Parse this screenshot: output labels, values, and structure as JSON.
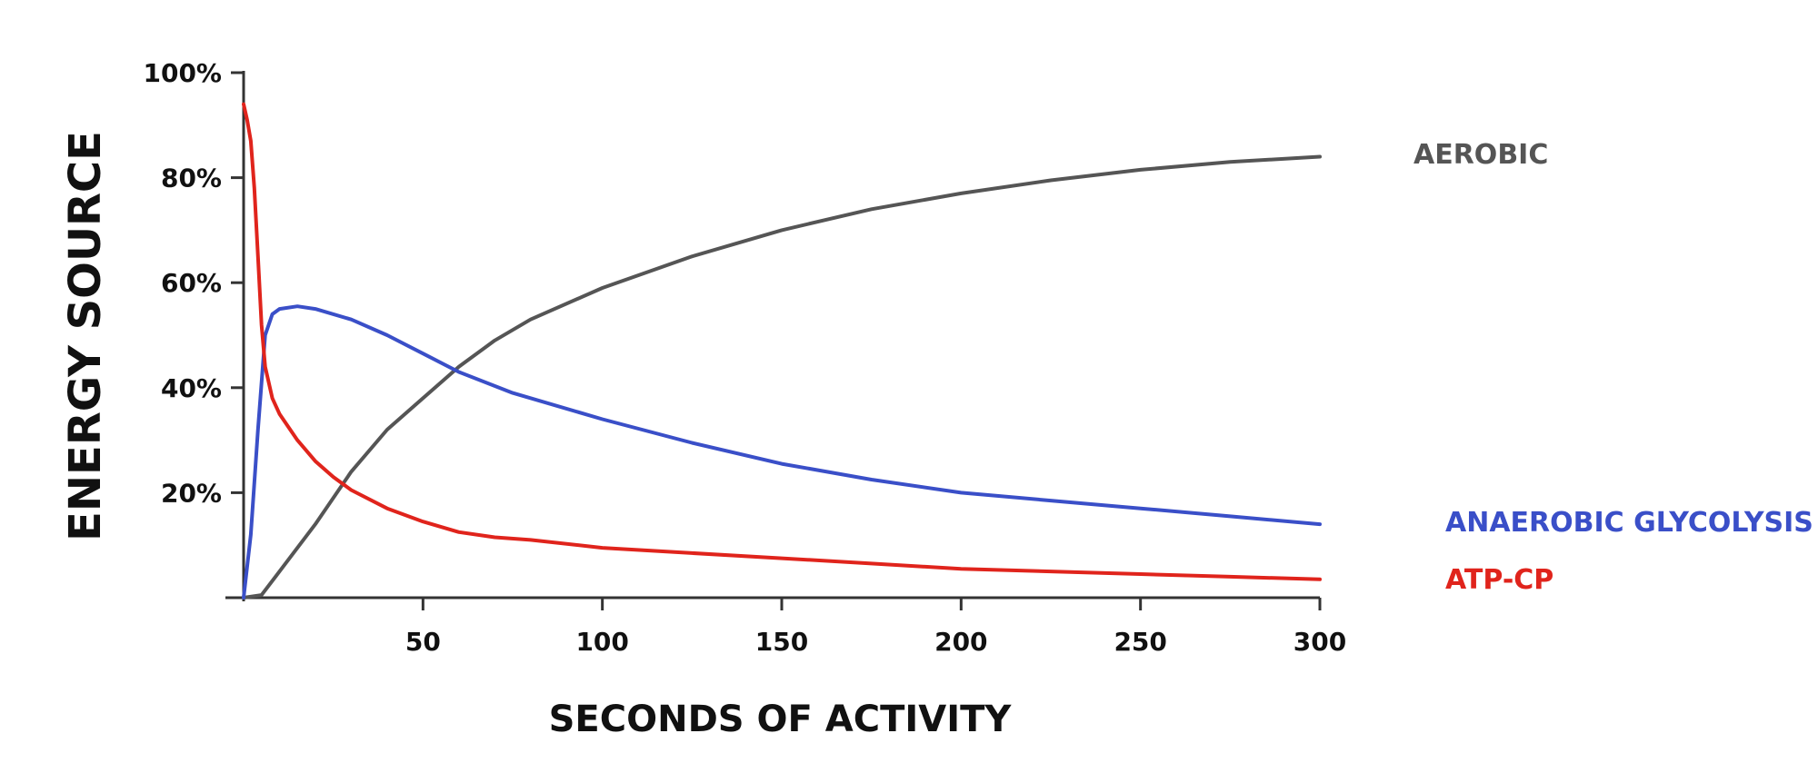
{
  "chart_data": {
    "type": "line",
    "title": "",
    "xlabel": "SECONDS OF ACTIVITY",
    "ylabel": "ENERGY SOURCE",
    "xlim": [
      0,
      300
    ],
    "ylim": [
      0,
      100
    ],
    "x_ticks": [
      {
        "value": 50,
        "label": "50"
      },
      {
        "value": 100,
        "label": "100"
      },
      {
        "value": 150,
        "label": "150"
      },
      {
        "value": 200,
        "label": "200"
      },
      {
        "value": 250,
        "label": "250"
      },
      {
        "value": 300,
        "label": "300"
      }
    ],
    "y_ticks": [
      {
        "value": 20,
        "label": "20%"
      },
      {
        "value": 40,
        "label": "40%"
      },
      {
        "value": 60,
        "label": "60%"
      },
      {
        "value": 80,
        "label": "80%"
      },
      {
        "value": 100,
        "label": "100%"
      }
    ],
    "grid": false,
    "legend": "inline labels at right end of lines",
    "series": [
      {
        "name": "AEROBIC",
        "color": "#555555",
        "x": [
          0,
          5,
          10,
          20,
          30,
          40,
          50,
          60,
          70,
          80,
          100,
          125,
          150,
          175,
          200,
          225,
          250,
          275,
          300
        ],
        "y": [
          0,
          0.5,
          5,
          14,
          24,
          32,
          38,
          44,
          49,
          53,
          59,
          65,
          70,
          74,
          77,
          79.5,
          81.5,
          83,
          84
        ]
      },
      {
        "name": "ANAEROBIC GLYCOLYSIS",
        "color": "#3a4fc8",
        "x": [
          0,
          2,
          4,
          6,
          8,
          10,
          15,
          20,
          30,
          40,
          50,
          60,
          75,
          100,
          125,
          150,
          175,
          200,
          225,
          250,
          275,
          300
        ],
        "y": [
          0,
          12,
          32,
          50,
          54,
          55,
          55.5,
          55,
          53,
          50,
          46.5,
          43,
          39,
          34,
          29.5,
          25.5,
          22.5,
          20,
          18.5,
          17,
          15.5,
          14
        ]
      },
      {
        "name": "ATP-CP",
        "color": "#e0241c",
        "x": [
          0,
          1,
          2,
          3,
          4,
          5,
          6,
          8,
          10,
          15,
          20,
          25,
          30,
          40,
          50,
          60,
          70,
          80,
          100,
          125,
          150,
          175,
          200,
          225,
          250,
          275,
          300
        ],
        "y": [
          94,
          91,
          87,
          78,
          65,
          52,
          44,
          38,
          35,
          30,
          26,
          23,
          20.5,
          17,
          14.5,
          12.5,
          11.5,
          11,
          9.5,
          8.5,
          7.5,
          6.5,
          5.5,
          5,
          4.5,
          4,
          3.5
        ]
      }
    ]
  }
}
